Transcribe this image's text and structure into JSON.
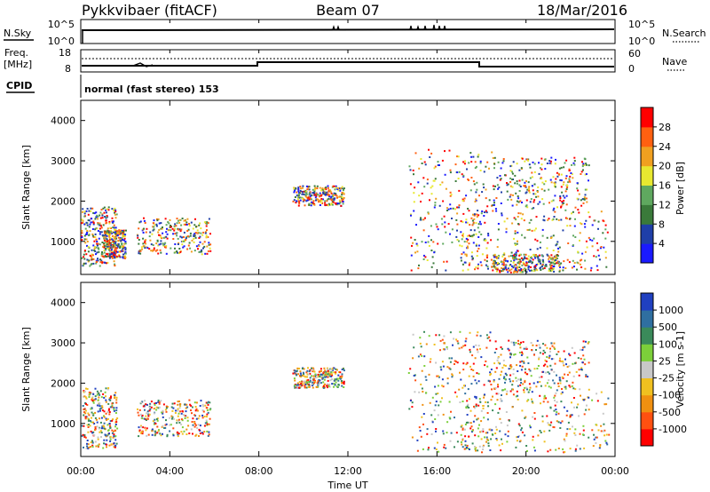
{
  "header": {
    "station": "Pykkvibaer (fitACF)",
    "beam": "Beam 07",
    "date": "18/Mar/2016"
  },
  "noise_panel": {
    "left_label": "N.Sky",
    "right_label": "N.Search",
    "ticks": [
      "10^5",
      "10^0"
    ],
    "right_ticks": [
      "10^5",
      "10^0"
    ]
  },
  "freq_panel": {
    "left_label_1": "Freq.",
    "left_label_2": "[MHz]",
    "left_ticks": [
      "18",
      "8"
    ],
    "right_label": "Nave",
    "right_ticks": [
      "60",
      "0"
    ]
  },
  "cpid": {
    "label": "CPID",
    "value": "normal (fast stereo) 153"
  },
  "time_axis": {
    "label": "Time UT",
    "ticks": [
      "00:00",
      "04:00",
      "08:00",
      "12:00",
      "16:00",
      "20:00",
      "00:00"
    ]
  },
  "chart_data": [
    {
      "type": "heatmap",
      "name": "power",
      "ylabel": "Slant Range [km]",
      "ylim": [
        180,
        4500
      ],
      "xlim_hours": [
        0,
        24
      ],
      "yticks": [
        1000,
        2000,
        3000,
        4000
      ],
      "colorbar_label": "Power [dB]",
      "colorbar_ticks": [
        "4",
        "8",
        "12",
        "16",
        "20",
        "24",
        "28"
      ],
      "colors": [
        "#1a1aff",
        "#1f3fa8",
        "#3a7a3a",
        "#5fa85f",
        "#e8e830",
        "#f0a020",
        "#ff6010",
        "#ff0000"
      ],
      "scatter_regions": [
        {
          "t": [
            0.0,
            1.6
          ],
          "r": [
            400,
            1900
          ]
        },
        {
          "t": [
            1.0,
            2.0
          ],
          "r": [
            600,
            1300
          ]
        },
        {
          "t": [
            2.5,
            5.8
          ],
          "r": [
            700,
            1600
          ]
        },
        {
          "t": [
            9.5,
            11.8
          ],
          "r": [
            1900,
            2400
          ]
        },
        {
          "t": [
            14.7,
            18.5
          ],
          "r": [
            300,
            3300
          ]
        },
        {
          "t": [
            17.0,
            23.7
          ],
          "r": [
            300,
            1800
          ]
        },
        {
          "t": [
            18.5,
            22.8
          ],
          "r": [
            1800,
            3100
          ]
        },
        {
          "t": [
            18.5,
            21.5
          ],
          "r": [
            250,
            700
          ]
        }
      ]
    },
    {
      "type": "heatmap",
      "name": "velocity",
      "ylabel": "Slant Range [km]",
      "ylim": [
        180,
        4500
      ],
      "xlim_hours": [
        0,
        24
      ],
      "yticks": [
        1000,
        2000,
        3000,
        4000
      ],
      "colorbar_label": "Velocity [m s-1]",
      "colorbar_ticks": [
        "1000",
        "500",
        "100",
        "25",
        "-25",
        "-100",
        "-500",
        "-1000"
      ],
      "colors": [
        "#2040c0",
        "#2f6fa0",
        "#3a8a5a",
        "#7ccf3a",
        "#c8c8c8",
        "#f0c020",
        "#f09010",
        "#ff5010",
        "#ff0000"
      ],
      "scatter_regions": [
        {
          "t": [
            0.0,
            1.6
          ],
          "r": [
            400,
            1900
          ]
        },
        {
          "t": [
            2.5,
            5.8
          ],
          "r": [
            700,
            1600
          ]
        },
        {
          "t": [
            9.5,
            11.8
          ],
          "r": [
            1900,
            2400
          ]
        },
        {
          "t": [
            14.7,
            18.5
          ],
          "r": [
            300,
            3300
          ]
        },
        {
          "t": [
            17.0,
            23.7
          ],
          "r": [
            300,
            1800
          ]
        },
        {
          "t": [
            18.5,
            22.8
          ],
          "r": [
            1800,
            3100
          ]
        }
      ]
    }
  ]
}
